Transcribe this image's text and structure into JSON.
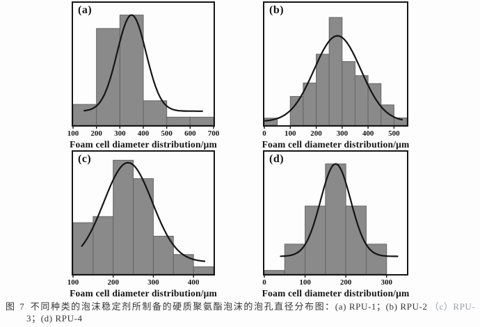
{
  "figure": {
    "caption": {
      "prefix": "图 7",
      "line1_cn": "不同种类的泡沫稳定剂所制备的硬质聚氨酯泡沫的泡孔直径分布图：",
      "line1_latin": "(a) RPU-1；(b) RPU-2",
      "line1_cutoff": "（c）RPU-",
      "line2": "3；(d) RPU-4"
    }
  },
  "colors": {
    "bar_fill": "#8a8a8a",
    "bar_edge": "#646464",
    "axis": "#141414",
    "curve": "#141414"
  },
  "chart_data": [
    {
      "type": "bar",
      "subtype": "histogram-with-gaussian-fit",
      "panel_label": "(a)",
      "sample": "RPU-1",
      "xlabel": "Foam cell diameter distribution/μm",
      "x_min": 100,
      "x_max": 700,
      "x_ticks": [
        100,
        200,
        300,
        400,
        500,
        600,
        700
      ],
      "y_axis_visible": false,
      "bars": [
        {
          "x0": 100,
          "x1": 200,
          "h": 0.17
        },
        {
          "x0": 200,
          "x1": 300,
          "h": 0.79
        },
        {
          "x0": 300,
          "x1": 400,
          "h": 0.9
        },
        {
          "x0": 400,
          "x1": 500,
          "h": 0.2
        },
        {
          "x0": 500,
          "x1": 600,
          "h": 0.066
        },
        {
          "x0": 600,
          "x1": 700,
          "h": 0.066
        }
      ],
      "curve": {
        "center": 350,
        "sigma": 62,
        "peak": 0.9,
        "baseline": 0.115,
        "x_start": 148,
        "x_end": 652
      }
    },
    {
      "type": "bar",
      "subtype": "histogram-with-gaussian-fit",
      "panel_label": "(b)",
      "sample": "RPU-2",
      "xlabel": "Foam cell diameter distribution/μm",
      "x_min": 0,
      "x_max": 550,
      "x_ticks": [
        0,
        100,
        200,
        300,
        400,
        500
      ],
      "y_axis_visible": false,
      "bars": [
        {
          "x0": 0,
          "x1": 50,
          "h": 0.058
        },
        {
          "x0": 100,
          "x1": 150,
          "h": 0.235
        },
        {
          "x0": 150,
          "x1": 200,
          "h": 0.345
        },
        {
          "x0": 200,
          "x1": 250,
          "h": 0.58
        },
        {
          "x0": 250,
          "x1": 300,
          "h": 0.88
        },
        {
          "x0": 300,
          "x1": 350,
          "h": 0.52
        },
        {
          "x0": 350,
          "x1": 400,
          "h": 0.405
        },
        {
          "x0": 400,
          "x1": 450,
          "h": 0.34
        },
        {
          "x0": 450,
          "x1": 500,
          "h": 0.166
        },
        {
          "x0": 500,
          "x1": 550,
          "h": 0.06
        }
      ],
      "curve": {
        "center": 282,
        "sigma": 90,
        "peak": 0.73,
        "baseline": 0.03,
        "x_start": 3,
        "x_end": 533
      }
    },
    {
      "type": "bar",
      "subtype": "histogram-with-gaussian-fit",
      "panel_label": "(c)",
      "sample": "RPU-3",
      "xlabel": "Foam cell diameter distribution/μm",
      "x_min": 100,
      "x_max": 450,
      "x_ticks": [
        100,
        200,
        300,
        400
      ],
      "y_axis_visible": false,
      "bars": [
        {
          "x0": 100,
          "x1": 150,
          "h": 0.42
        },
        {
          "x0": 150,
          "x1": 200,
          "h": 0.47
        },
        {
          "x0": 200,
          "x1": 250,
          "h": 0.93
        },
        {
          "x0": 250,
          "x1": 300,
          "h": 0.78
        },
        {
          "x0": 300,
          "x1": 350,
          "h": 0.31
        },
        {
          "x0": 350,
          "x1": 400,
          "h": 0.16
        },
        {
          "x0": 400,
          "x1": 450,
          "h": 0.06
        }
      ],
      "curve": {
        "center": 237,
        "sigma": 60,
        "peak": 0.91,
        "baseline": 0.1,
        "x_start": 122,
        "x_end": 428
      }
    },
    {
      "type": "bar",
      "subtype": "histogram-with-gaussian-fit",
      "panel_label": "(d)",
      "sample": "RPU-4",
      "xlabel": "Foam cell diameter distribution/μm",
      "x_min": 0,
      "x_max": 350,
      "x_ticks": [
        0,
        100,
        200,
        300
      ],
      "y_axis_visible": false,
      "bars": [
        {
          "x0": 0,
          "x1": 50,
          "h": 0.03
        },
        {
          "x0": 50,
          "x1": 100,
          "h": 0.245
        },
        {
          "x0": 100,
          "x1": 150,
          "h": 0.556
        },
        {
          "x0": 150,
          "x1": 200,
          "h": 0.9
        },
        {
          "x0": 200,
          "x1": 250,
          "h": 0.556
        },
        {
          "x0": 250,
          "x1": 300,
          "h": 0.245
        }
      ],
      "curve": {
        "center": 175,
        "sigma": 37,
        "peak": 0.9,
        "baseline": 0.145,
        "x_start": 40,
        "x_end": 327
      }
    }
  ]
}
